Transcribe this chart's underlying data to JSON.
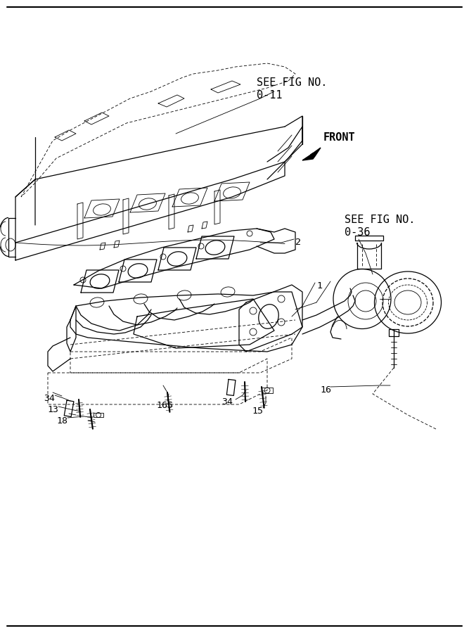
{
  "bg_color": "#ffffff",
  "line_color": "#000000",
  "figsize": [
    6.67,
    9.0
  ],
  "dpi": 100,
  "texts": {
    "see_fig_top_1": "SEE FIG NO.",
    "see_fig_top_2": "0-11",
    "front": "FRONT",
    "see_fig_right_1": "SEE FIG NO.",
    "see_fig_right_2": "0-36",
    "p1": "1",
    "p2": "2",
    "p13": "13",
    "p15": "15",
    "p16": "16",
    "p18": "18",
    "p34a": "34",
    "p34b": "34",
    "p165": "165"
  }
}
